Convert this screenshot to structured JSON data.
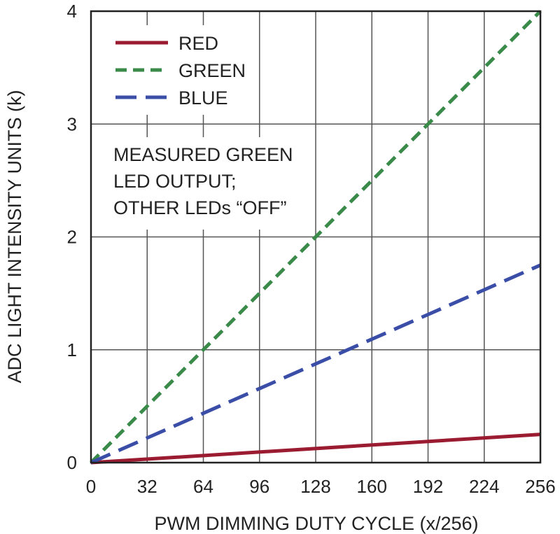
{
  "chart_data": {
    "type": "line",
    "title": "",
    "xlabel": "PWM DIMMING DUTY CYCLE (x/256)",
    "ylabel": "ADC LIGHT INTENSITY UNITS (k)",
    "xlim": [
      0,
      256
    ],
    "ylim": [
      0,
      4
    ],
    "xticks": [
      "0",
      "32",
      "64",
      "96",
      "128",
      "160",
      "192",
      "224",
      "256"
    ],
    "yticks": [
      "0",
      "1",
      "2",
      "3",
      "4"
    ],
    "grid": true,
    "legend_position": "top-left",
    "annotation": [
      "MEASURED GREEN",
      "LED OUTPUT;",
      "OTHER LEDs “OFF”"
    ],
    "series": [
      {
        "name": "RED",
        "color": "#9b1b30",
        "dash": "solid",
        "x": [
          0,
          256
        ],
        "y": [
          0,
          0.25
        ]
      },
      {
        "name": "GREEN",
        "color": "#3a8a4a",
        "dash": "short-dash",
        "x": [
          0,
          256
        ],
        "y": [
          0,
          4.0
        ]
      },
      {
        "name": "BLUE",
        "color": "#3a4ea8",
        "dash": "long-dash",
        "x": [
          0,
          256
        ],
        "y": [
          0,
          1.75
        ]
      }
    ]
  }
}
